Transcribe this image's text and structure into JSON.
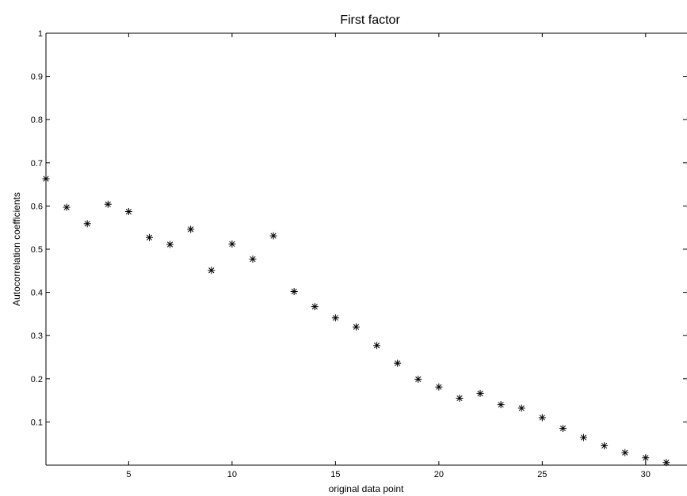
{
  "chart_data": {
    "type": "scatter",
    "title": "First factor",
    "xlabel": "original data point",
    "ylabel": "Autocorrelation coefficients",
    "xlim": [
      1,
      32
    ],
    "ylim": [
      0,
      1
    ],
    "xticks": [
      5,
      10,
      15,
      20,
      25,
      30
    ],
    "yticks": [
      0.1,
      0.2,
      0.3,
      0.4,
      0.5,
      0.6,
      0.7,
      0.8,
      0.9,
      1
    ],
    "ytick_labels": [
      "0.1",
      "0.2",
      "0.3",
      "0.4",
      "0.5",
      "0.6",
      "0.7",
      "0.8",
      "0.9",
      "1"
    ],
    "marker": "*",
    "grid": false,
    "series": [
      {
        "x": [
          1,
          2,
          3,
          4,
          5,
          6,
          7,
          8,
          9,
          10,
          11,
          12,
          13,
          14,
          15,
          16,
          17,
          18,
          19,
          20,
          21,
          22,
          23,
          24,
          25,
          26,
          27,
          28,
          29,
          30,
          31
        ],
        "y": [
          0.663,
          0.597,
          0.559,
          0.604,
          0.587,
          0.527,
          0.511,
          0.546,
          0.451,
          0.512,
          0.477,
          0.531,
          0.402,
          0.367,
          0.341,
          0.32,
          0.277,
          0.236,
          0.199,
          0.181,
          0.155,
          0.166,
          0.14,
          0.132,
          0.11,
          0.085,
          0.064,
          0.045,
          0.029,
          0.017,
          0.006
        ]
      }
    ]
  }
}
